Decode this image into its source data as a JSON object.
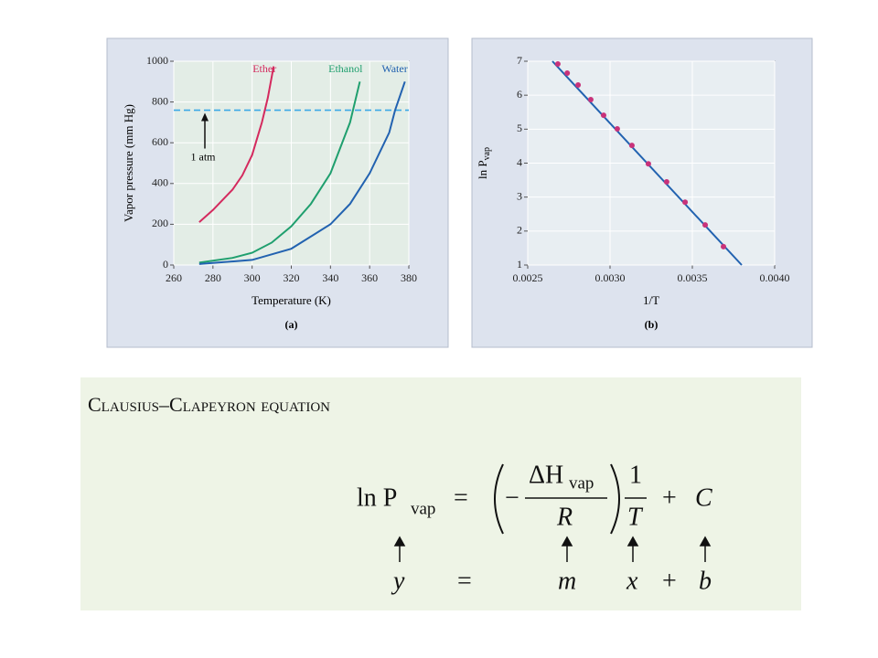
{
  "chart_data": [
    {
      "type": "line",
      "caption": "(a)",
      "xlabel": "Temperature (K)",
      "ylabel": "Vapor pressure (mm Hg)",
      "xlim": [
        260,
        380
      ],
      "xticks": [
        260,
        280,
        300,
        320,
        340,
        360,
        380
      ],
      "ylim": [
        0,
        1000
      ],
      "yticks": [
        0,
        200,
        400,
        600,
        800,
        1000
      ],
      "grid": true,
      "reference_line": {
        "value": 760,
        "label": "1 atm",
        "color": "#3aa8e6"
      },
      "series": [
        {
          "name": "Ether",
          "color": "#d42a5e",
          "x": [
            273,
            280,
            290,
            295,
            300,
            305,
            308,
            311
          ],
          "values": [
            210,
            270,
            370,
            440,
            540,
            700,
            820,
            975
          ]
        },
        {
          "name": "Ethanol",
          "color": "#1f9f6e",
          "x": [
            273,
            290,
            300,
            310,
            320,
            330,
            340,
            350,
            355
          ],
          "values": [
            12,
            35,
            60,
            110,
            190,
            300,
            450,
            700,
            900
          ]
        },
        {
          "name": "Water",
          "color": "#2262b0",
          "x": [
            273,
            300,
            320,
            340,
            350,
            360,
            370,
            373,
            378
          ],
          "values": [
            5,
            25,
            80,
            200,
            300,
            450,
            650,
            760,
            900
          ]
        }
      ]
    },
    {
      "type": "scatter",
      "caption": "(b)",
      "xlabel": "1/T",
      "ylabel": "ln P",
      "ylabel_sub": "vap",
      "xlim": [
        0.0025,
        0.004
      ],
      "xticks": [
        0.0025,
        {
          "value": 0.003,
          "label": "0.0030"
        },
        0.0035,
        {
          "value": 0.004,
          "label": "0.0040"
        }
      ],
      "ylim": [
        1,
        7
      ],
      "yticks": [
        1,
        2,
        3,
        4,
        5,
        6,
        7
      ],
      "grid": true,
      "color": "#c8327a",
      "x": [
        0.002683,
        0.00274,
        0.002806,
        0.002883,
        0.002961,
        0.003044,
        0.003133,
        0.003233,
        0.003344,
        0.003456,
        0.003578,
        0.003689
      ],
      "values": [
        6.92,
        6.65,
        6.3,
        5.87,
        5.41,
        5.01,
        4.52,
        3.98,
        3.45,
        2.85,
        2.18,
        1.54
      ],
      "fit_line": {
        "color": "#2262b0",
        "x": [
          0.00265,
          0.0038
        ],
        "values": [
          7.0,
          1.0
        ]
      }
    }
  ],
  "equation": {
    "title": "Clausius–Clapeyron equation",
    "lhs": "ln P",
    "lhs_sub": "vap",
    "equals": "=",
    "minus": "−",
    "numerator": "ΔH",
    "numerator_sub": "vap",
    "denominator": "R",
    "one": "1",
    "t": "T",
    "plus": "+",
    "c": "C",
    "row2": [
      "y",
      "=",
      "m",
      "x",
      "+",
      "b"
    ]
  }
}
